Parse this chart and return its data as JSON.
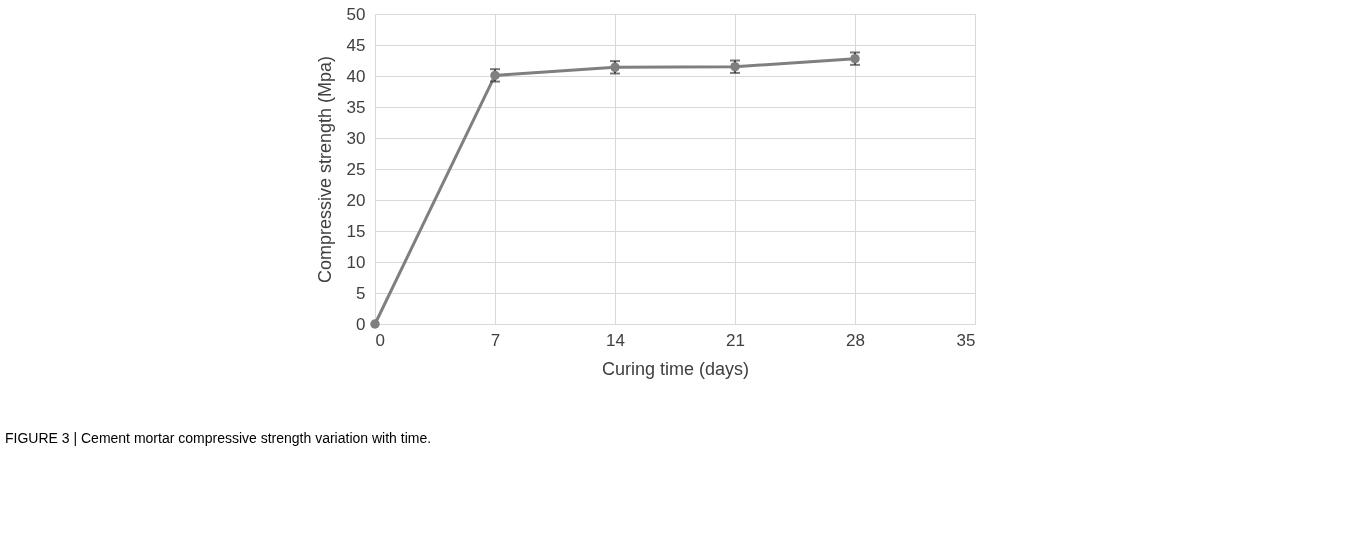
{
  "chart_data": {
    "type": "line",
    "xlabel": "Curing time (days)",
    "ylabel": "Compressive strength (Mpa)",
    "x": [
      0,
      7,
      14,
      21,
      28
    ],
    "series": [
      {
        "color": "#7f7f7f",
        "values": [
          0,
          40.1,
          41.4,
          41.5,
          42.8
        ],
        "errors": [
          null,
          1.0,
          1.0,
          1.0,
          1.0
        ]
      }
    ],
    "xlim": [
      0,
      35
    ],
    "xticks": [
      0,
      7,
      14,
      21,
      28,
      35
    ],
    "ylim": [
      0,
      50
    ],
    "yticks": [
      0,
      5,
      10,
      15,
      20,
      25,
      30,
      35,
      40,
      45,
      50
    ],
    "grid": true,
    "marker": "circle",
    "line_style": "solid",
    "annotations": [
      "FIGURE 3 | Cement mortar compressive strength variation with time."
    ]
  }
}
